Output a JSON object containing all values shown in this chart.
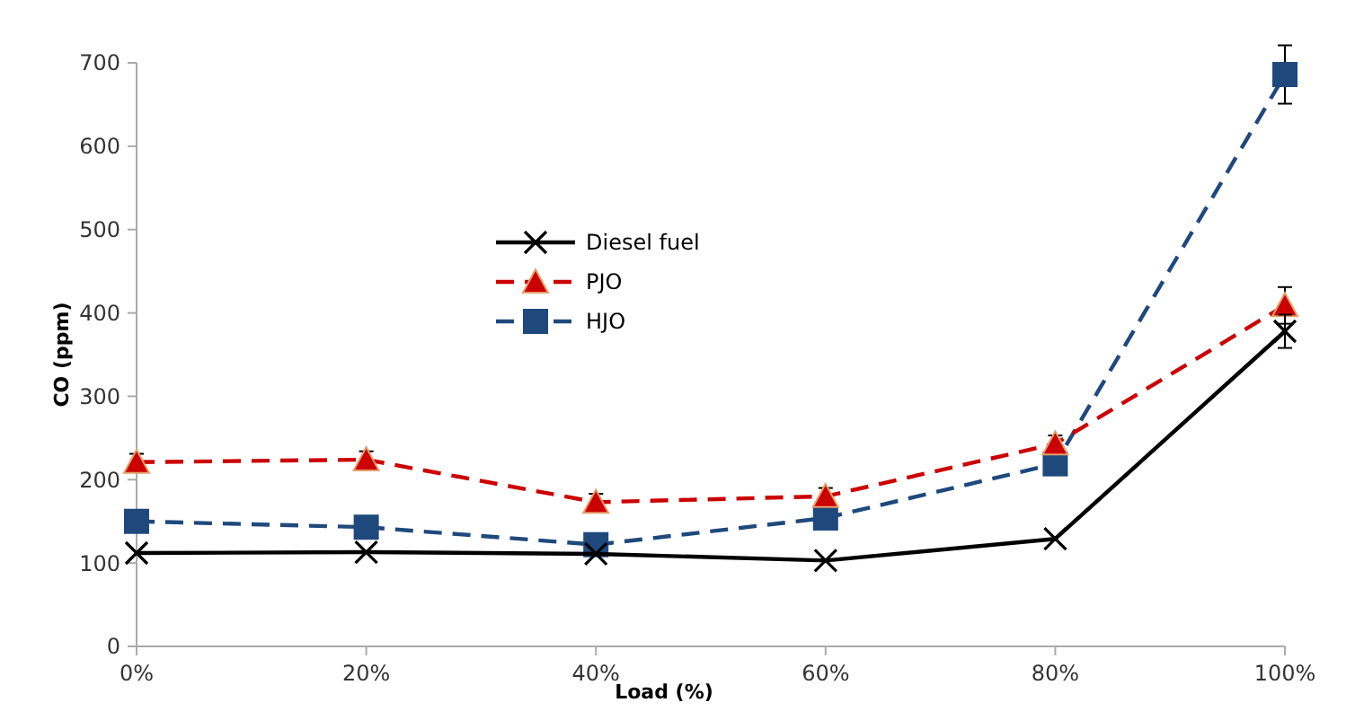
{
  "chart_data": {
    "type": "line",
    "xlabel": "Load (%)",
    "ylabel": "CO (ppm)",
    "categories": [
      "0%",
      "20%",
      "40%",
      "60%",
      "80%",
      "100%"
    ],
    "ylim": [
      0,
      700
    ],
    "yticks": [
      0,
      100,
      200,
      300,
      400,
      500,
      600,
      700
    ],
    "grid": false,
    "legend": "top left",
    "series": [
      {
        "name": "Diesel fuel",
        "color": "#000000",
        "marker": "cross",
        "line_style": "solid",
        "values": [
          112,
          113,
          111,
          103,
          129,
          378
        ],
        "errors": [
          null,
          null,
          null,
          null,
          null,
          20
        ]
      },
      {
        "name": "PJO",
        "color": "#cc0000",
        "marker": "triangle",
        "line_style": "dashed",
        "values": [
          221,
          224,
          173,
          180,
          243,
          409
        ],
        "errors": [
          10,
          10,
          10,
          10,
          10,
          22
        ]
      },
      {
        "name": "HJO",
        "color": "#1f497d",
        "marker": "square",
        "line_style": "dashed",
        "values": [
          150,
          143,
          122,
          154,
          219,
          686
        ],
        "errors": [
          null,
          null,
          null,
          null,
          null,
          35
        ]
      }
    ]
  }
}
